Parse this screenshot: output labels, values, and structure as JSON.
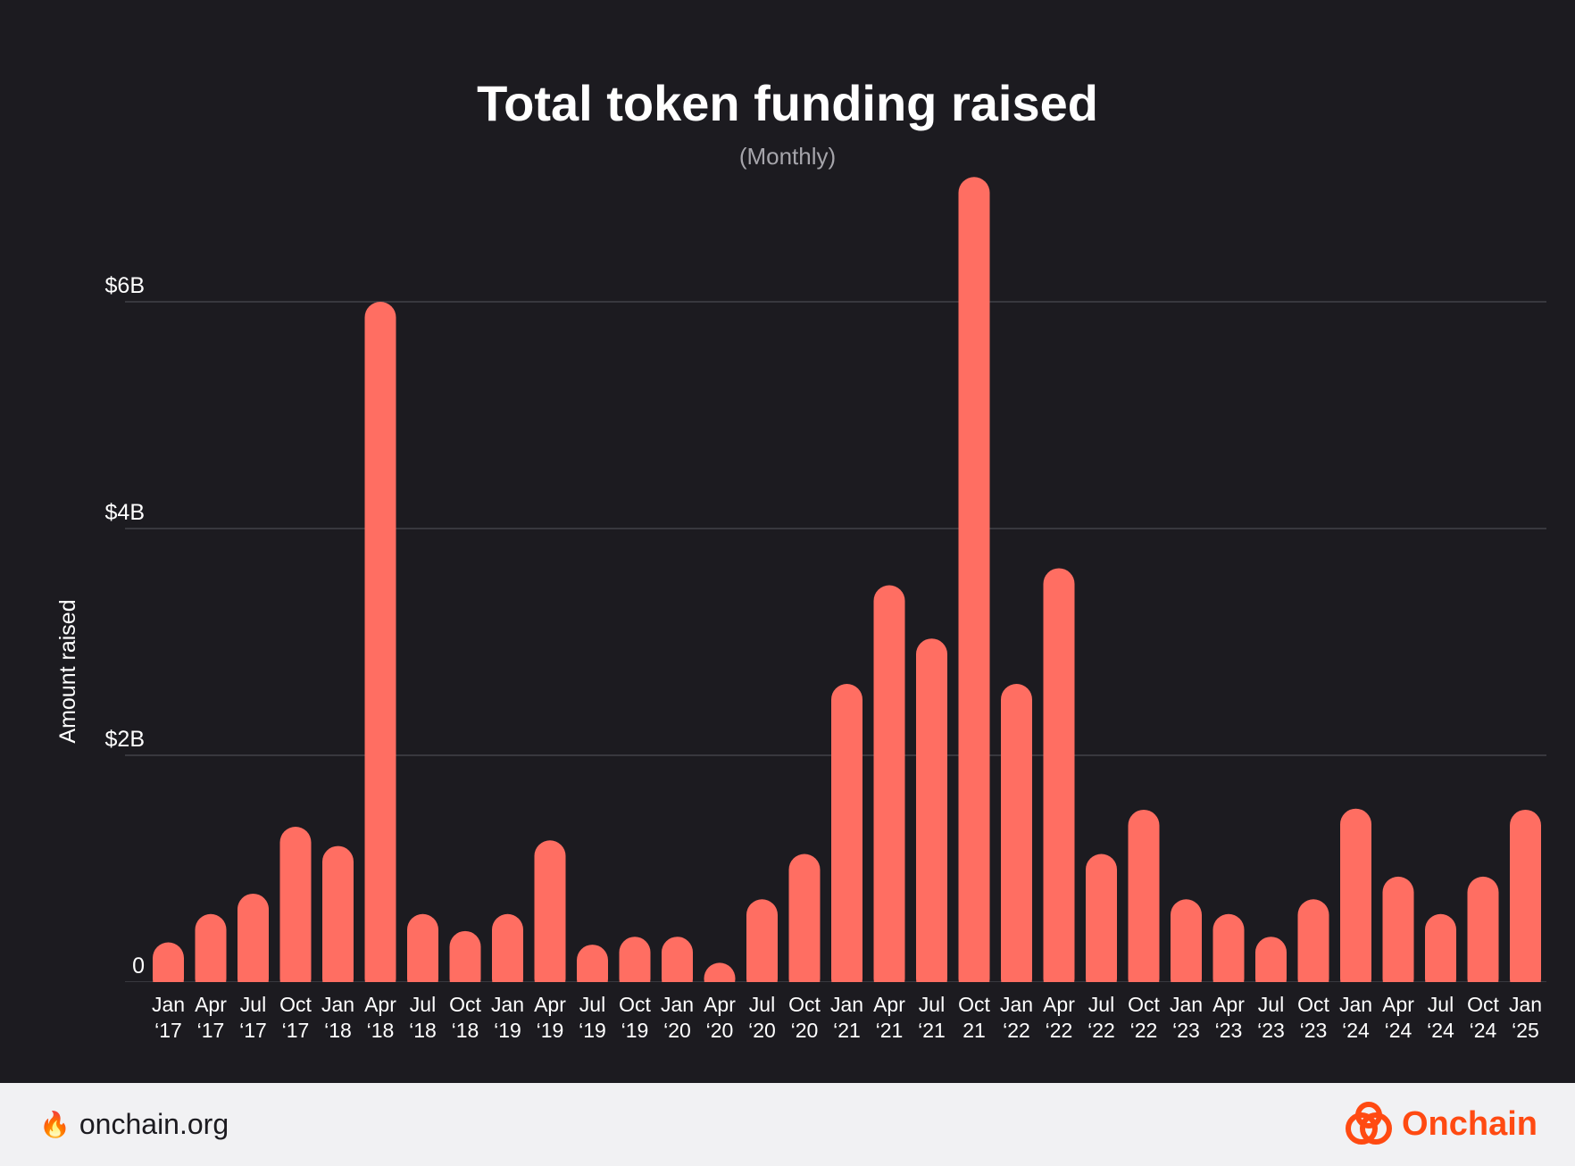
{
  "chart_data": {
    "type": "bar",
    "title": "Total token funding raised",
    "subtitle": "(Monthly)",
    "ylabel": "Amount raised",
    "xlabel": "",
    "ylim": [
      0,
      7
    ],
    "y_ticks": [
      {
        "value": 0,
        "label": "0"
      },
      {
        "value": 2,
        "label": "$2B"
      },
      {
        "value": 4,
        "label": "$4B"
      },
      {
        "value": 6,
        "label": "$6B"
      }
    ],
    "grid": true,
    "categories": [
      [
        "Jan",
        "‘17"
      ],
      [
        "Apr",
        "‘17"
      ],
      [
        "Jul",
        "‘17"
      ],
      [
        "Oct",
        "‘17"
      ],
      [
        "Jan",
        "‘18"
      ],
      [
        "Apr",
        "‘18"
      ],
      [
        "Jul",
        "‘18"
      ],
      [
        "Oct",
        "‘18"
      ],
      [
        "Jan",
        "‘19"
      ],
      [
        "Apr",
        "‘19"
      ],
      [
        "Jul",
        "‘19"
      ],
      [
        "Oct",
        "‘19"
      ],
      [
        "Jan",
        "‘20"
      ],
      [
        "Apr",
        "‘20"
      ],
      [
        "Jul",
        "‘20"
      ],
      [
        "Oct",
        "‘20"
      ],
      [
        "Jan",
        "‘21"
      ],
      [
        "Apr",
        "‘21"
      ],
      [
        "Jul",
        "‘21"
      ],
      [
        "Oct",
        "21"
      ],
      [
        "Jan",
        "‘22"
      ],
      [
        "Apr",
        "‘22"
      ],
      [
        "Jul",
        "‘22"
      ],
      [
        "Oct",
        "‘22"
      ],
      [
        "Jan",
        "‘23"
      ],
      [
        "Apr",
        "‘23"
      ],
      [
        "Jul",
        "‘23"
      ],
      [
        "Oct",
        "‘23"
      ],
      [
        "Jan",
        "‘24"
      ],
      [
        "Apr",
        "‘24"
      ],
      [
        "Jul",
        "‘24"
      ],
      [
        "Oct",
        "‘24"
      ],
      [
        "Jan",
        "‘25"
      ]
    ],
    "values": [
      0.35,
      0.6,
      0.78,
      1.37,
      1.2,
      6.0,
      0.6,
      0.45,
      0.6,
      1.25,
      0.33,
      0.4,
      0.4,
      0.17,
      0.73,
      1.13,
      2.63,
      3.5,
      3.03,
      7.1,
      2.63,
      3.65,
      1.13,
      1.52,
      0.73,
      0.6,
      0.4,
      0.73,
      1.53,
      0.93,
      0.6,
      0.93,
      1.52
    ],
    "bar_color": "#ff6e62"
  },
  "footer": {
    "site_icon": "flame-icon",
    "site": "onchain.org",
    "brand_icon": "onchain-logo-icon",
    "brand": "Onchain",
    "brand_color": "#ff4a12"
  },
  "colors": {
    "background": "#1c1b20",
    "footer_background": "#f1f1f3",
    "gridline": "#4a4950"
  }
}
